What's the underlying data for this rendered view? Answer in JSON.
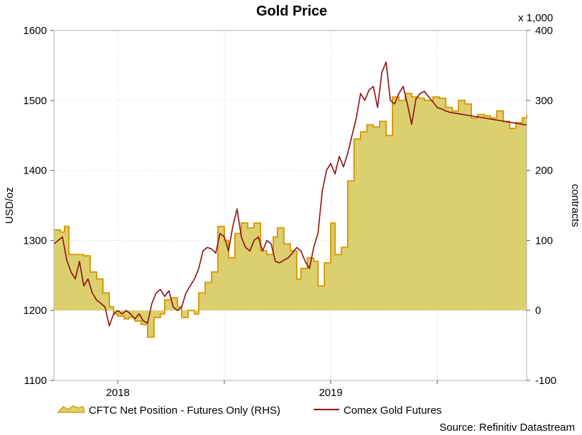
{
  "chart_data": {
    "type": "line",
    "title": "Gold Price",
    "source": "Source: Refinitiv Datastream",
    "left_axis": {
      "label": "USD/oz",
      "range": [
        1100,
        1600
      ],
      "ticks": [
        "1600",
        "1500",
        "1400",
        "1300",
        "1200",
        "1100"
      ],
      "tick_values": [
        1600,
        1500,
        1400,
        1300,
        1200,
        1100
      ]
    },
    "right_axis": {
      "label": "contracts",
      "multiplier": "x 1,000",
      "range": [
        -100,
        400
      ],
      "ticks": [
        "400",
        "300",
        "200",
        "100",
        "0",
        "-100"
      ],
      "tick_values": [
        400,
        300,
        200,
        100,
        0,
        -100
      ]
    },
    "x_axis": {
      "range": [
        2017.7,
        2019.92
      ],
      "ticks": [
        "2018",
        "2019"
      ],
      "tick_values": [
        2018.0,
        2019.0
      ],
      "gridlines": [
        2018.0,
        2018.5,
        2019.0,
        2019.5
      ]
    },
    "grid": true,
    "legend": "bottom",
    "colors": {
      "area_fill": "#dccf6e",
      "area_line": "#d99b0c",
      "gold_line": "#8b0f12"
    },
    "series": [
      {
        "name": "CFTC Net Position - Futures Only (RHS)",
        "type": "area",
        "axis": "right",
        "x": [
          2017.7,
          2017.73,
          2017.75,
          2017.77,
          2017.81,
          2017.84,
          2017.87,
          2017.9,
          2017.93,
          2017.96,
          2017.98,
          2018.0,
          2018.03,
          2018.05,
          2018.08,
          2018.11,
          2018.14,
          2018.17,
          2018.2,
          2018.22,
          2018.25,
          2018.28,
          2018.3,
          2018.33,
          2018.36,
          2018.38,
          2018.41,
          2018.44,
          2018.47,
          2018.5,
          2018.52,
          2018.55,
          2018.58,
          2018.61,
          2018.64,
          2018.67,
          2018.7,
          2018.73,
          2018.75,
          2018.78,
          2018.81,
          2018.84,
          2018.86,
          2018.89,
          2018.92,
          2018.94,
          2018.97,
          2019.0,
          2019.02,
          2019.05,
          2019.08,
          2019.11,
          2019.14,
          2019.17,
          2019.2,
          2019.23,
          2019.26,
          2019.29,
          2019.32,
          2019.35,
          2019.38,
          2019.41,
          2019.44,
          2019.48,
          2019.51,
          2019.54,
          2019.57,
          2019.6,
          2019.63,
          2019.66,
          2019.69,
          2019.72,
          2019.75,
          2019.78,
          2019.81,
          2019.84,
          2019.87,
          2019.9,
          2019.92
        ],
        "values": [
          115,
          112,
          120,
          80,
          80,
          78,
          55,
          45,
          25,
          5,
          -5,
          -8,
          -12,
          -10,
          -15,
          -20,
          -38,
          -10,
          -5,
          15,
          18,
          5,
          -10,
          0,
          -5,
          25,
          40,
          55,
          120,
          100,
          75,
          110,
          125,
          118,
          125,
          85,
          80,
          105,
          118,
          95,
          85,
          45,
          60,
          75,
          70,
          35,
          68,
          125,
          80,
          90,
          185,
          245,
          255,
          265,
          262,
          270,
          250,
          305,
          300,
          310,
          305,
          303,
          300,
          305,
          303,
          290,
          285,
          300,
          295,
          275,
          280,
          278,
          275,
          285,
          270,
          260,
          268,
          275,
          280
        ]
      },
      {
        "name": "Comex Gold Futures",
        "type": "line",
        "axis": "left",
        "x": [
          2017.7,
          2017.72,
          2017.74,
          2017.76,
          2017.78,
          2017.8,
          2017.82,
          2017.84,
          2017.86,
          2017.88,
          2017.9,
          2017.92,
          2017.94,
          2017.96,
          2017.98,
          2018.0,
          2018.02,
          2018.04,
          2018.06,
          2018.08,
          2018.1,
          2018.12,
          2018.14,
          2018.16,
          2018.18,
          2018.2,
          2018.22,
          2018.24,
          2018.26,
          2018.28,
          2018.3,
          2018.32,
          2018.34,
          2018.36,
          2018.38,
          2018.4,
          2018.42,
          2018.44,
          2018.46,
          2018.48,
          2018.5,
          2018.52,
          2018.54,
          2018.56,
          2018.58,
          2018.6,
          2018.62,
          2018.64,
          2018.66,
          2018.68,
          2018.7,
          2018.72,
          2018.74,
          2018.76,
          2018.78,
          2018.8,
          2018.82,
          2018.84,
          2018.86,
          2018.88,
          2018.9,
          2018.92,
          2018.94,
          2018.96,
          2018.98,
          2019.0,
          2019.02,
          2019.04,
          2019.06,
          2019.08,
          2019.1,
          2019.12,
          2019.14,
          2019.16,
          2019.18,
          2019.2,
          2019.22,
          2019.24,
          2019.26,
          2019.28,
          2019.3,
          2019.32,
          2019.34,
          2019.36,
          2019.38,
          2019.4,
          2019.42,
          2019.44,
          2019.46,
          2019.48,
          2019.5,
          2019.52,
          2019.54,
          2019.56,
          2019.58,
          2019.6,
          2019.62,
          2019.64,
          2019.66,
          2019.68,
          2019.7,
          2019.72,
          2019.74,
          2019.76,
          2019.78,
          2019.8,
          2019.82,
          2019.84,
          2019.86,
          2019.88,
          2019.9,
          2019.92
        ],
        "values": [
          1295,
          1300,
          1305,
          1272,
          1255,
          1245,
          1270,
          1235,
          1245,
          1225,
          1215,
          1210,
          1205,
          1178,
          1195,
          1200,
          1195,
          1200,
          1195,
          1188,
          1195,
          1185,
          1182,
          1210,
          1225,
          1230,
          1220,
          1228,
          1205,
          1200,
          1205,
          1225,
          1235,
          1245,
          1260,
          1285,
          1290,
          1288,
          1282,
          1310,
          1305,
          1285,
          1320,
          1345,
          1305,
          1290,
          1285,
          1300,
          1305,
          1285,
          1300,
          1295,
          1270,
          1268,
          1272,
          1275,
          1282,
          1290,
          1285,
          1270,
          1260,
          1290,
          1310,
          1370,
          1400,
          1410,
          1395,
          1420,
          1405,
          1425,
          1450,
          1475,
          1510,
          1500,
          1515,
          1520,
          1490,
          1540,
          1555,
          1500,
          1495,
          1510,
          1520,
          1495,
          1466,
          1502,
          1510,
          1513,
          1505,
          1498,
          1490,
          1488,
          1485,
          1483,
          1482,
          1481,
          1480,
          1479,
          1478,
          1477,
          1476,
          1475,
          1474,
          1473,
          1472,
          1471,
          1470,
          1469,
          1468,
          1467,
          1466,
          1465
        ]
      }
    ]
  }
}
